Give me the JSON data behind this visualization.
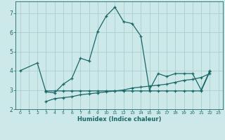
{
  "xlabel": "Humidex (Indice chaleur)",
  "bg_color": "#cce8e8",
  "grid_color": "#aacece",
  "line_color": "#1a6868",
  "xlim": [
    -0.5,
    23.5
  ],
  "ylim": [
    2.0,
    7.6
  ],
  "yticks": [
    2,
    3,
    4,
    5,
    6,
    7
  ],
  "xticks": [
    0,
    1,
    2,
    3,
    4,
    5,
    6,
    7,
    8,
    9,
    10,
    11,
    12,
    13,
    14,
    15,
    16,
    17,
    18,
    19,
    20,
    21,
    22,
    23
  ],
  "line1_x": [
    0,
    2,
    3,
    4,
    5,
    6,
    7,
    8,
    9,
    10,
    11,
    12,
    13,
    14,
    15,
    16,
    17,
    18,
    19,
    20,
    21,
    22
  ],
  "line1_y": [
    4.0,
    4.4,
    2.9,
    2.85,
    3.3,
    3.6,
    4.65,
    4.5,
    6.05,
    6.85,
    7.3,
    6.55,
    6.45,
    5.8,
    3.0,
    3.85,
    3.7,
    3.85,
    3.85,
    3.85,
    3.0,
    4.0
  ],
  "line2_x": [
    3,
    4,
    5,
    6,
    7,
    8,
    9,
    10,
    11,
    12,
    13,
    14,
    15,
    16,
    17,
    18,
    19,
    20,
    21,
    22
  ],
  "line2_y": [
    2.95,
    2.95,
    2.95,
    2.95,
    2.95,
    2.95,
    2.95,
    2.95,
    2.95,
    2.95,
    2.95,
    2.95,
    2.95,
    2.95,
    2.95,
    2.95,
    2.95,
    2.95,
    2.95,
    3.95
  ],
  "line3_x": [
    3,
    4,
    5,
    6,
    7,
    8,
    9,
    10,
    11,
    12,
    13,
    14,
    15,
    16,
    17,
    18,
    19,
    20,
    21,
    22
  ],
  "line3_y": [
    2.4,
    2.55,
    2.6,
    2.65,
    2.75,
    2.8,
    2.85,
    2.9,
    2.95,
    3.0,
    3.1,
    3.15,
    3.2,
    3.25,
    3.3,
    3.4,
    3.5,
    3.55,
    3.65,
    3.85
  ]
}
